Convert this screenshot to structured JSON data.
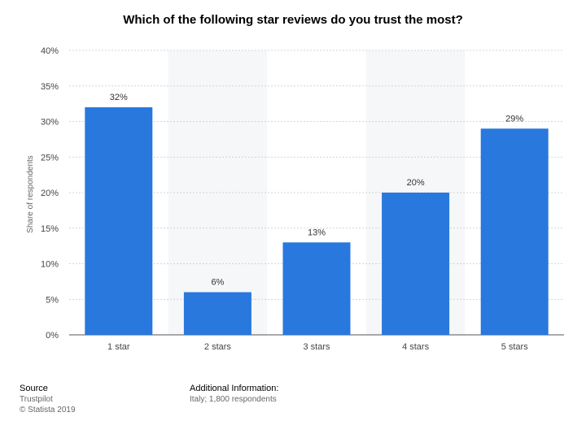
{
  "chart_data": {
    "type": "bar",
    "title": "Which of the following star reviews do you trust the most?",
    "categories": [
      "1 star",
      "2 stars",
      "3 stars",
      "4 stars",
      "5 stars"
    ],
    "values": [
      32,
      6,
      13,
      20,
      29
    ],
    "data_labels": [
      "32%",
      "6%",
      "13%",
      "20%",
      "29%"
    ],
    "ylabel": "Share of respondents",
    "xlabel": "",
    "ylim": [
      0,
      40
    ],
    "yticks": [
      0,
      5,
      10,
      15,
      20,
      25,
      30,
      35,
      40
    ],
    "ytick_labels": [
      "0%",
      "5%",
      "10%",
      "15%",
      "20%",
      "25%",
      "30%",
      "35%",
      "40%"
    ],
    "grid": true,
    "bar_color": "#2878de"
  },
  "footer": {
    "source_heading": "Source",
    "source_name": "Trustpilot",
    "copyright": "© Statista 2019",
    "info_heading": "Additional Information:",
    "info_text": "Italy; 1,800 respondents"
  }
}
